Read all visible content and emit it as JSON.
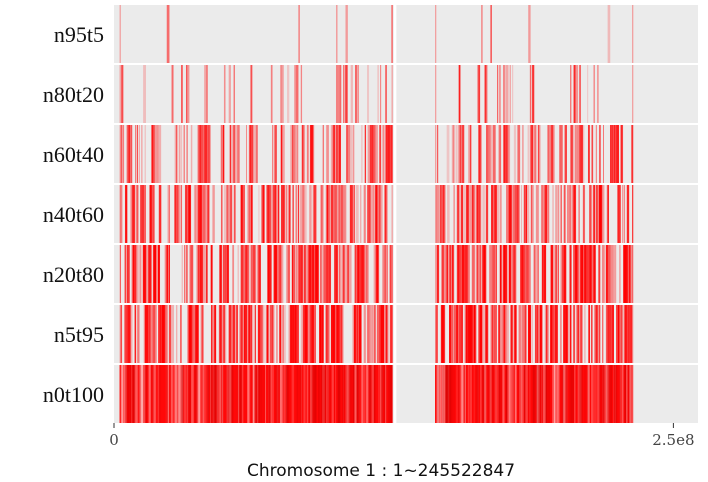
{
  "chart_data": {
    "type": "heatmap",
    "title": "",
    "xlabel": "Chromosome 1 : 1~245522847",
    "ylabel": "",
    "xlim": [
      0,
      245522847
    ],
    "x_ticks": [
      {
        "value": 0,
        "label": "0"
      },
      {
        "value": 250000000,
        "label": "2.5e8"
      }
    ],
    "colors": {
      "panel": "#ebebeb",
      "mark": "#ff0000",
      "separator": "#ffffff"
    },
    "regions": [
      {
        "start": 2500000,
        "end": 124500000
      },
      {
        "start": 143500000,
        "end": 232000000
      }
    ],
    "vertical_lines": [
      125500000
    ],
    "rows": [
      {
        "label": "n95t5",
        "density": 0.02,
        "intensity": 0.55
      },
      {
        "label": "n80t20",
        "density": 0.14,
        "intensity": 0.6
      },
      {
        "label": "n60t40",
        "density": 0.45,
        "intensity": 0.65
      },
      {
        "label": "n40t60",
        "density": 0.6,
        "intensity": 0.7
      },
      {
        "label": "n20t80",
        "density": 0.75,
        "intensity": 0.78
      },
      {
        "label": "n5t95",
        "density": 0.82,
        "intensity": 0.8
      },
      {
        "label": "n0t100",
        "density": 0.98,
        "intensity": 0.97
      }
    ]
  }
}
